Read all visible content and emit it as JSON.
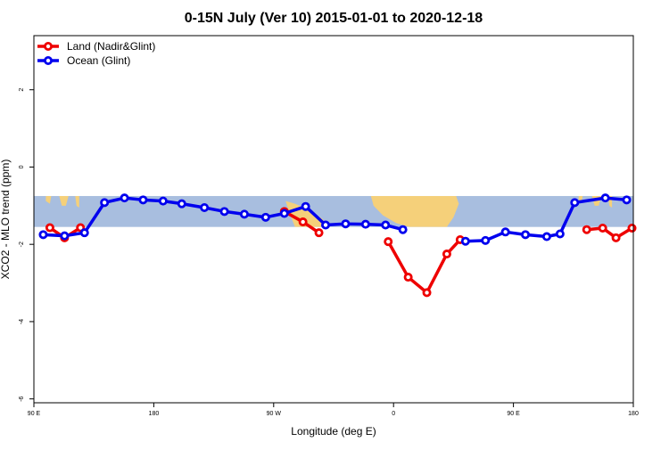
{
  "chart_data": {
    "type": "line",
    "title": "0-15N July (Ver 10)   2015-01-01 to 2020-12-18",
    "xlabel": "Longitude (deg E)",
    "ylabel": "XCO2 - MLO trend (ppm)",
    "x_axis_positions": [
      90,
      180,
      270,
      360,
      450,
      540
    ],
    "x_tick_labels": [
      "90 E",
      "180",
      "90 W",
      "0",
      "90 E",
      "180"
    ],
    "xlim": [
      90,
      540
    ],
    "y_ticks": [
      2,
      0,
      -2,
      -4,
      -6
    ],
    "y_tick_labels": [
      "2",
      "0",
      "-2",
      "-4",
      "-6"
    ],
    "ylim": [
      -6.1,
      3.4
    ],
    "legend_position": "top-left",
    "map_band": {
      "ylow": -1.55,
      "yhigh": -0.75,
      "ocean_color": "#a8bedf",
      "land_color": "#f5d07a"
    },
    "series": [
      {
        "name": "Land (Nadir&Glint)",
        "color": "#ee0000",
        "segments": [
          [
            [
              102,
              -1.57
            ],
            [
              113,
              -1.83
            ],
            [
              125,
              -1.57
            ]
          ],
          [
            [
              278,
              -1.15
            ],
            [
              292,
              -1.42
            ],
            [
              304,
              -1.7
            ]
          ],
          [
            [
              356,
              -1.93
            ],
            [
              371,
              -2.85
            ],
            [
              385,
              -3.25
            ],
            [
              400,
              -2.25
            ],
            [
              410,
              -1.88
            ]
          ],
          [
            [
              505,
              -1.62
            ],
            [
              517,
              -1.58
            ],
            [
              527,
              -1.83
            ],
            [
              539,
              -1.58
            ]
          ]
        ]
      },
      {
        "name": "Ocean (Glint)",
        "color": "#0000ee",
        "segments": [
          [
            [
              97,
              -1.75
            ],
            [
              113,
              -1.78
            ],
            [
              128,
              -1.7
            ],
            [
              143,
              -0.92
            ],
            [
              158,
              -0.8
            ],
            [
              172,
              -0.85
            ],
            [
              187,
              -0.88
            ],
            [
              201,
              -0.95
            ],
            [
              218,
              -1.05
            ],
            [
              233,
              -1.15
            ],
            [
              248,
              -1.22
            ],
            [
              264,
              -1.3
            ],
            [
              278,
              -1.2
            ],
            [
              294,
              -1.02
            ],
            [
              309,
              -1.5
            ],
            [
              324,
              -1.47
            ],
            [
              339,
              -1.48
            ],
            [
              354,
              -1.5
            ],
            [
              367,
              -1.62
            ]
          ],
          [
            [
              414,
              -1.92
            ],
            [
              429,
              -1.9
            ],
            [
              444,
              -1.68
            ],
            [
              459,
              -1.75
            ],
            [
              475,
              -1.8
            ],
            [
              485,
              -1.73
            ],
            [
              496,
              -0.92
            ],
            [
              519,
              -0.8
            ],
            [
              535,
              -0.85
            ]
          ]
        ]
      }
    ]
  }
}
